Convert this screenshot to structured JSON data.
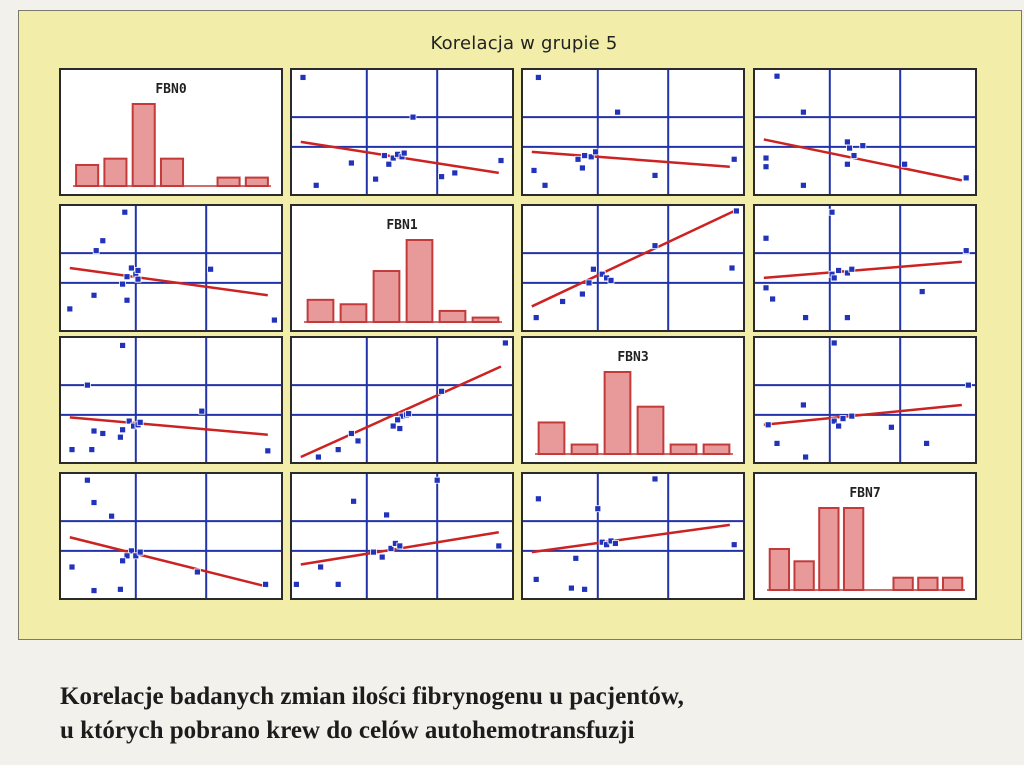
{
  "chart_data": {
    "type": "scatter-matrix",
    "title": "Korelacja w grupie 5",
    "variables": [
      "FBN0",
      "FBN1",
      "FBN3",
      "FBN7"
    ],
    "colors": {
      "points": "#2233bb",
      "grid": "#2233aa",
      "regression": "#cc2222",
      "bars": "#e89a9a",
      "bar_edge": "#c23a3a",
      "panel_bg": "#ffffff",
      "frame_bg": "#f2eeaa"
    },
    "histograms": [
      {
        "variable": "FBN0",
        "values": [
          1,
          1.3,
          3.9,
          1.3,
          0,
          0.4,
          0.4
        ]
      },
      {
        "variable": "FBN1",
        "values": [
          1,
          0.8,
          2.3,
          3.7,
          0.5,
          0.2
        ]
      },
      {
        "variable": "FBN3",
        "values": [
          1,
          0.3,
          2.6,
          1.5,
          0.3,
          0.3
        ]
      },
      {
        "variable": "FBN7",
        "values": [
          1,
          0.7,
          2.0,
          2.0,
          0,
          0.3,
          0.3,
          0.3
        ]
      }
    ],
    "scatter_panels": [
      {
        "row": 0,
        "col": 1,
        "points": [
          [
            0.05,
            0.06
          ],
          [
            0.55,
            0.38
          ],
          [
            0.42,
            0.69
          ],
          [
            0.46,
            0.71
          ],
          [
            0.48,
            0.68
          ],
          [
            0.5,
            0.7
          ],
          [
            0.51,
            0.67
          ],
          [
            0.44,
            0.76
          ],
          [
            0.38,
            0.88
          ],
          [
            0.27,
            0.75
          ],
          [
            0.68,
            0.86
          ],
          [
            0.74,
            0.83
          ],
          [
            0.95,
            0.73
          ],
          [
            0.11,
            0.93
          ]
        ],
        "line": [
          [
            0.04,
            0.58
          ],
          [
            0.94,
            0.83
          ]
        ]
      },
      {
        "row": 0,
        "col": 2,
        "points": [
          [
            0.07,
            0.06
          ],
          [
            0.43,
            0.34
          ],
          [
            0.25,
            0.72
          ],
          [
            0.28,
            0.69
          ],
          [
            0.31,
            0.7
          ],
          [
            0.33,
            0.66
          ],
          [
            0.27,
            0.79
          ],
          [
            0.05,
            0.81
          ],
          [
            0.1,
            0.93
          ],
          [
            0.6,
            0.85
          ],
          [
            0.96,
            0.72
          ]
        ],
        "line": [
          [
            0.04,
            0.66
          ],
          [
            0.94,
            0.78
          ]
        ]
      },
      {
        "row": 0,
        "col": 3,
        "points": [
          [
            0.1,
            0.05
          ],
          [
            0.22,
            0.34
          ],
          [
            0.42,
            0.58
          ],
          [
            0.43,
            0.63
          ],
          [
            0.45,
            0.69
          ],
          [
            0.49,
            0.61
          ],
          [
            0.42,
            0.76
          ],
          [
            0.05,
            0.71
          ],
          [
            0.05,
            0.78
          ],
          [
            0.68,
            0.76
          ],
          [
            0.96,
            0.87
          ],
          [
            0.22,
            0.93
          ]
        ],
        "line": [
          [
            0.04,
            0.56
          ],
          [
            0.94,
            0.89
          ]
        ]
      },
      {
        "row": 1,
        "col": 0,
        "points": [
          [
            0.29,
            0.05
          ],
          [
            0.19,
            0.28
          ],
          [
            0.16,
            0.36
          ],
          [
            0.32,
            0.5
          ],
          [
            0.34,
            0.55
          ],
          [
            0.35,
            0.59
          ],
          [
            0.3,
            0.57
          ],
          [
            0.28,
            0.63
          ],
          [
            0.35,
            0.52
          ],
          [
            0.68,
            0.51
          ],
          [
            0.15,
            0.72
          ],
          [
            0.3,
            0.76
          ],
          [
            0.04,
            0.83
          ],
          [
            0.97,
            0.92
          ]
        ],
        "line": [
          [
            0.04,
            0.5
          ],
          [
            0.94,
            0.72
          ]
        ]
      },
      {
        "row": 1,
        "col": 2,
        "points": [
          [
            0.97,
            0.04
          ],
          [
            0.6,
            0.32
          ],
          [
            0.32,
            0.51
          ],
          [
            0.36,
            0.55
          ],
          [
            0.38,
            0.58
          ],
          [
            0.4,
            0.6
          ],
          [
            0.3,
            0.62
          ],
          [
            0.27,
            0.71
          ],
          [
            0.18,
            0.77
          ],
          [
            0.06,
            0.9
          ],
          [
            0.95,
            0.5
          ]
        ],
        "line": [
          [
            0.04,
            0.81
          ],
          [
            0.96,
            0.04
          ]
        ]
      },
      {
        "row": 1,
        "col": 3,
        "points": [
          [
            0.35,
            0.05
          ],
          [
            0.05,
            0.26
          ],
          [
            0.35,
            0.55
          ],
          [
            0.38,
            0.52
          ],
          [
            0.42,
            0.54
          ],
          [
            0.44,
            0.51
          ],
          [
            0.36,
            0.58
          ],
          [
            0.05,
            0.66
          ],
          [
            0.08,
            0.75
          ],
          [
            0.76,
            0.69
          ],
          [
            0.96,
            0.36
          ],
          [
            0.23,
            0.9
          ],
          [
            0.42,
            0.9
          ]
        ],
        "line": [
          [
            0.04,
            0.58
          ],
          [
            0.94,
            0.45
          ]
        ]
      },
      {
        "row": 2,
        "col": 0,
        "points": [
          [
            0.28,
            0.06
          ],
          [
            0.12,
            0.38
          ],
          [
            0.31,
            0.67
          ],
          [
            0.33,
            0.71
          ],
          [
            0.35,
            0.7
          ],
          [
            0.36,
            0.68
          ],
          [
            0.28,
            0.74
          ],
          [
            0.27,
            0.8
          ],
          [
            0.19,
            0.77
          ],
          [
            0.15,
            0.75
          ],
          [
            0.05,
            0.9
          ],
          [
            0.14,
            0.9
          ],
          [
            0.64,
            0.59
          ],
          [
            0.94,
            0.91
          ]
        ],
        "line": [
          [
            0.04,
            0.64
          ],
          [
            0.94,
            0.78
          ]
        ]
      },
      {
        "row": 2,
        "col": 1,
        "points": [
          [
            0.97,
            0.04
          ],
          [
            0.68,
            0.43
          ],
          [
            0.5,
            0.63
          ],
          [
            0.48,
            0.66
          ],
          [
            0.46,
            0.71
          ],
          [
            0.52,
            0.62
          ],
          [
            0.49,
            0.73
          ],
          [
            0.27,
            0.77
          ],
          [
            0.3,
            0.83
          ],
          [
            0.21,
            0.9
          ],
          [
            0.12,
            0.96
          ],
          [
            0.53,
            0.61
          ]
        ],
        "line": [
          [
            0.04,
            0.96
          ],
          [
            0.95,
            0.23
          ]
        ]
      },
      {
        "row": 2,
        "col": 3,
        "points": [
          [
            0.36,
            0.04
          ],
          [
            0.97,
            0.38
          ],
          [
            0.22,
            0.54
          ],
          [
            0.36,
            0.67
          ],
          [
            0.4,
            0.65
          ],
          [
            0.44,
            0.63
          ],
          [
            0.38,
            0.71
          ],
          [
            0.06,
            0.7
          ],
          [
            0.1,
            0.85
          ],
          [
            0.62,
            0.72
          ],
          [
            0.78,
            0.85
          ],
          [
            0.23,
            0.96
          ]
        ],
        "line": [
          [
            0.04,
            0.7
          ],
          [
            0.94,
            0.54
          ]
        ]
      },
      {
        "row": 3,
        "col": 0,
        "points": [
          [
            0.12,
            0.05
          ],
          [
            0.15,
            0.23
          ],
          [
            0.23,
            0.34
          ],
          [
            0.32,
            0.62
          ],
          [
            0.34,
            0.66
          ],
          [
            0.36,
            0.63
          ],
          [
            0.3,
            0.66
          ],
          [
            0.28,
            0.7
          ],
          [
            0.05,
            0.75
          ],
          [
            0.15,
            0.94
          ],
          [
            0.27,
            0.93
          ],
          [
            0.62,
            0.79
          ],
          [
            0.93,
            0.89
          ]
        ],
        "line": [
          [
            0.04,
            0.51
          ],
          [
            0.94,
            0.91
          ]
        ]
      },
      {
        "row": 3,
        "col": 1,
        "points": [
          [
            0.66,
            0.05
          ],
          [
            0.28,
            0.22
          ],
          [
            0.43,
            0.33
          ],
          [
            0.45,
            0.6
          ],
          [
            0.47,
            0.56
          ],
          [
            0.49,
            0.58
          ],
          [
            0.41,
            0.67
          ],
          [
            0.37,
            0.63
          ],
          [
            0.13,
            0.75
          ],
          [
            0.21,
            0.89
          ],
          [
            0.94,
            0.58
          ],
          [
            0.02,
            0.89
          ]
        ],
        "line": [
          [
            0.04,
            0.73
          ],
          [
            0.94,
            0.47
          ]
        ]
      },
      {
        "row": 3,
        "col": 2,
        "points": [
          [
            0.6,
            0.04
          ],
          [
            0.07,
            0.2
          ],
          [
            0.34,
            0.28
          ],
          [
            0.36,
            0.55
          ],
          [
            0.38,
            0.57
          ],
          [
            0.4,
            0.54
          ],
          [
            0.42,
            0.56
          ],
          [
            0.24,
            0.68
          ],
          [
            0.06,
            0.85
          ],
          [
            0.22,
            0.92
          ],
          [
            0.28,
            0.93
          ],
          [
            0.96,
            0.57
          ]
        ],
        "line": [
          [
            0.04,
            0.63
          ],
          [
            0.94,
            0.41
          ]
        ]
      }
    ]
  },
  "caption": {
    "line1": "Korelacje badanych zmian ilości fibrynogenu u pacjentów,",
    "line2": "u których pobrano krew do celów autohemotransfuzji"
  }
}
